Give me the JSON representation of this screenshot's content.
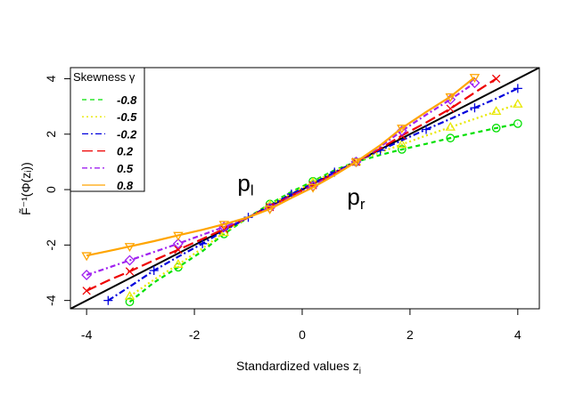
{
  "chart_data": {
    "type": "line",
    "xlabel": "Standardized values z",
    "xlabel_sub": "i",
    "ylabel": "F̃⁻¹(Φ(zᵢ))",
    "xlim": [
      -4.3,
      4.4
    ],
    "ylim": [
      -4.3,
      4.4
    ],
    "xticks": [
      -4,
      -2,
      0,
      2,
      4
    ],
    "yticks": [
      -4,
      -2,
      0,
      2,
      4
    ],
    "grid": false,
    "legend": {
      "position": "top-left",
      "title": "Skewness γ"
    },
    "annotations": [
      {
        "label": "p",
        "sub": "l",
        "x": -1.05,
        "y": -0.05
      },
      {
        "label": "p",
        "sub": "r",
        "x": 1.0,
        "y": -0.55
      }
    ],
    "reference_line": {
      "name": "identity",
      "color": "#000000",
      "x": [
        -4.3,
        4.4
      ],
      "y": [
        -4.3,
        4.4
      ]
    },
    "series": [
      {
        "name": "-0.8",
        "color": "#00e000",
        "dash": "5,4",
        "marker": "circle",
        "x": [
          -3.2,
          -2.75,
          -2.3,
          -1.85,
          -1.45,
          -1.0,
          -0.6,
          -0.2,
          0.2,
          0.6,
          1.0,
          1.45,
          1.85,
          2.3,
          2.75,
          3.2,
          3.6,
          4.0
        ],
        "y": [
          -4.05,
          -3.35,
          -2.8,
          -2.22,
          -1.6,
          -1.0,
          -0.52,
          -0.08,
          0.3,
          0.7,
          1.0,
          1.25,
          1.45,
          1.65,
          1.86,
          2.05,
          2.22,
          2.38
        ]
      },
      {
        "name": "-0.5",
        "color": "#e8e800",
        "dash": "2,3",
        "marker": "triangle",
        "x": [
          -3.2,
          -2.75,
          -2.3,
          -1.85,
          -1.45,
          -1.0,
          -0.6,
          -0.2,
          0.2,
          0.6,
          1.0,
          1.45,
          1.85,
          2.3,
          2.75,
          3.2,
          3.6,
          4.0
        ],
        "y": [
          -3.85,
          -3.25,
          -2.7,
          -2.12,
          -1.55,
          -1.0,
          -0.56,
          -0.13,
          0.26,
          0.66,
          1.0,
          1.35,
          1.63,
          1.95,
          2.25,
          2.55,
          2.82,
          3.08
        ]
      },
      {
        "name": "-0.2",
        "color": "#0000dd",
        "dash": "7,3,2,3",
        "marker": "plus",
        "x": [
          -3.6,
          -3.2,
          -2.75,
          -2.3,
          -1.85,
          -1.45,
          -1.0,
          -0.6,
          -0.2,
          0.2,
          0.6,
          1.0,
          1.45,
          1.85,
          2.3,
          2.75,
          3.2,
          3.6,
          4.0
        ],
        "y": [
          -4.0,
          -3.5,
          -2.92,
          -2.42,
          -1.95,
          -1.48,
          -1.0,
          -0.58,
          -0.16,
          0.22,
          0.63,
          1.0,
          1.42,
          1.78,
          2.17,
          2.55,
          2.95,
          3.28,
          3.65
        ]
      },
      {
        "name": "0.2",
        "color": "#ee0000",
        "dash": "12,5",
        "marker": "x",
        "x": [
          -4.0,
          -3.6,
          -3.2,
          -2.75,
          -2.3,
          -1.85,
          -1.45,
          -1.0,
          -0.6,
          -0.2,
          0.2,
          0.6,
          1.0,
          1.45,
          1.85,
          2.3,
          2.75,
          3.2,
          3.6
        ],
        "y": [
          -3.65,
          -3.28,
          -2.95,
          -2.55,
          -2.17,
          -1.78,
          -1.42,
          -1.0,
          -0.63,
          -0.22,
          0.16,
          0.58,
          1.0,
          1.48,
          1.95,
          2.42,
          2.92,
          3.5,
          4.0
        ]
      },
      {
        "name": "0.5",
        "color": "#a020f0",
        "dash": "6,3,2,3",
        "marker": "diamond",
        "x": [
          -4.0,
          -3.6,
          -3.2,
          -2.75,
          -2.3,
          -1.85,
          -1.45,
          -1.0,
          -0.6,
          -0.2,
          0.2,
          0.6,
          1.0,
          1.45,
          1.85,
          2.3,
          2.75,
          3.2
        ],
        "y": [
          -3.08,
          -2.82,
          -2.55,
          -2.25,
          -1.95,
          -1.63,
          -1.35,
          -1.0,
          -0.66,
          -0.26,
          0.13,
          0.56,
          1.0,
          1.55,
          2.12,
          2.7,
          3.25,
          3.85
        ]
      },
      {
        "name": "0.8",
        "color": "#ffa500",
        "dash": "",
        "marker": "triangle-down",
        "x": [
          -4.0,
          -3.6,
          -3.2,
          -2.75,
          -2.3,
          -1.85,
          -1.45,
          -1.0,
          -0.6,
          -0.2,
          0.2,
          0.6,
          1.0,
          1.45,
          1.85,
          2.3,
          2.75,
          3.2
        ],
        "y": [
          -2.38,
          -2.22,
          -2.05,
          -1.86,
          -1.65,
          -1.45,
          -1.25,
          -1.0,
          -0.7,
          -0.3,
          0.08,
          0.52,
          1.0,
          1.6,
          2.22,
          2.8,
          3.35,
          4.05
        ]
      }
    ]
  }
}
